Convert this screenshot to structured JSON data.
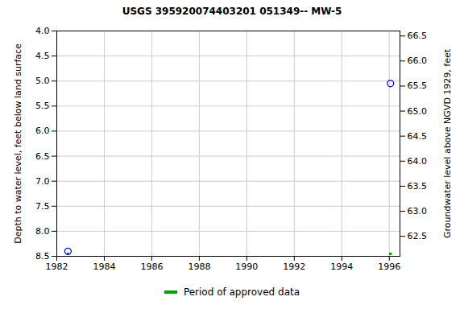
{
  "chart_data": {
    "type": "scatter",
    "title": "USGS 395920074403201 051349-- MW-5",
    "y_label": "Depth to water level, feet below land surface",
    "y2_label": "Groundwater level above NGVD 1929, feet",
    "x": [
      1982.47,
      1996.05
    ],
    "values": [
      8.4,
      5.05
    ],
    "color": "#0000cc",
    "marker": "circle",
    "approved_periods": {
      "name": "Period of approved data",
      "color": "#00a000",
      "x": [
        1982.47,
        1996.05
      ]
    },
    "xlim": [
      1982,
      1996.45
    ],
    "xticks": [
      1982,
      1984,
      1986,
      1988,
      1990,
      1992,
      1994,
      1996
    ],
    "ylim": [
      8.5,
      4.0
    ],
    "yticks": [
      {
        "value": 4,
        "label": "4.0"
      },
      4.5,
      {
        "value": 5,
        "label": "5.0"
      },
      5.5,
      {
        "value": 6,
        "label": "6.0"
      },
      6.5,
      {
        "value": 7,
        "label": "7.0"
      },
      7.5,
      {
        "value": 8,
        "label": "8.0"
      },
      8.5
    ],
    "y2lim": [
      62.1,
      66.6
    ],
    "y2ticks": [
      62.5,
      {
        "value": 63,
        "label": "63.0"
      },
      63.5,
      {
        "value": 64,
        "label": "64.0"
      },
      64.5,
      {
        "value": 65,
        "label": "65.0"
      },
      65.5,
      {
        "value": 66,
        "label": "66.0"
      },
      66.5
    ],
    "grid": true
  }
}
